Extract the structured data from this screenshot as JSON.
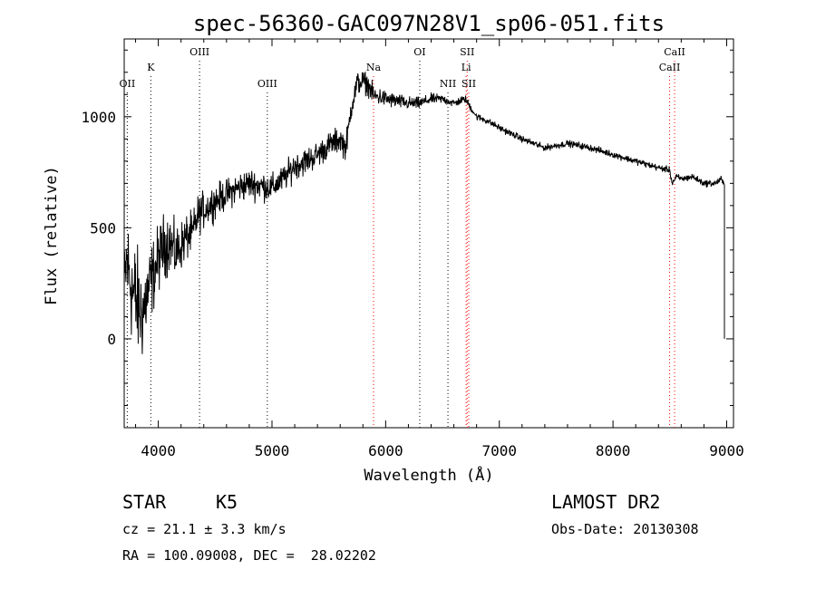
{
  "chart_data": {
    "type": "line",
    "title": "spec-56360-GAC097N28V1_sp06-051.fits",
    "xlabel": "Wavelength (Å)",
    "ylabel": "Flux (relative)",
    "xlim": [
      3700,
      9060
    ],
    "ylim": [
      -400,
      1350
    ],
    "xticks": [
      4000,
      5000,
      6000,
      7000,
      8000,
      9000
    ],
    "yticks": [
      0,
      500,
      1000
    ],
    "grid": false,
    "series": [
      {
        "color": "#000000",
        "envelope": {
          "x": [
            3700,
            3720,
            3740,
            3760,
            3780,
            3800,
            3820,
            3840,
            3860,
            3880,
            3900,
            3950,
            4000,
            4050,
            4100,
            4150,
            4200,
            4250,
            4300,
            4350,
            4400,
            4500,
            4600,
            4700,
            4800,
            4900,
            5000,
            5100,
            5200,
            5300,
            5400,
            5500,
            5600,
            5650,
            5700,
            5750,
            5800,
            5850,
            5900,
            5950,
            6000,
            6100,
            6200,
            6300,
            6400,
            6500,
            6600,
            6700,
            6800,
            6900,
            7000,
            7200,
            7400,
            7600,
            7800,
            8000,
            8200,
            8400,
            8500,
            8520,
            8560,
            8600,
            8700,
            8800,
            8900,
            8950,
            8980
          ],
          "center": [
            200,
            350,
            300,
            250,
            200,
            180,
            150,
            130,
            120,
            150,
            200,
            280,
            360,
            420,
            440,
            380,
            420,
            460,
            470,
            560,
            580,
            620,
            650,
            680,
            700,
            690,
            680,
            720,
            780,
            800,
            830,
            870,
            900,
            860,
            1050,
            1150,
            1160,
            1140,
            1090,
            1090,
            1080,
            1070,
            1060,
            1060,
            1080,
            1080,
            1060,
            1080,
            1000,
            980,
            950,
            900,
            860,
            880,
            860,
            830,
            800,
            770,
            760,
            700,
            730,
            720,
            730,
            700,
            700,
            720,
            690
          ],
          "noise": [
            300,
            320,
            360,
            360,
            380,
            380,
            360,
            340,
            320,
            300,
            280,
            240,
            220,
            210,
            200,
            180,
            160,
            150,
            140,
            130,
            120,
            110,
            100,
            100,
            100,
            100,
            90,
            90,
            90,
            90,
            85,
            85,
            85,
            85,
            80,
            80,
            75,
            70,
            65,
            60,
            55,
            50,
            45,
            40,
            35,
            30,
            28,
            26,
            24,
            22,
            22,
            22,
            22,
            22,
            22,
            22,
            22,
            22,
            22,
            22,
            22,
            22,
            22,
            22,
            22,
            22,
            22
          ],
          "ends_at_zero": true
        }
      }
    ],
    "line_markers": [
      {
        "name": "OII",
        "x": 3727,
        "color": "#000000",
        "row": 3
      },
      {
        "name": "K",
        "x": 3934,
        "color": "#000000",
        "row": 2
      },
      {
        "name": "OIII",
        "x": 4363,
        "color": "#000000",
        "row": 1
      },
      {
        "name": "OIII",
        "x": 4959,
        "color": "#000000",
        "row": 3
      },
      {
        "name": "Na",
        "x": 5893,
        "color": "#ff0000",
        "row": 2
      },
      {
        "name": "OI",
        "x": 6300,
        "color": "#000000",
        "row": 1
      },
      {
        "name": "NII",
        "x": 6548,
        "color": "#000000",
        "row": 3
      },
      {
        "name": "SII",
        "x": 6717,
        "color": "#ff0000",
        "row": 1
      },
      {
        "name": "Li",
        "x": 6708,
        "color": "#ff0000",
        "row": 2
      },
      {
        "name": "SII",
        "x": 6731,
        "color": "#ff0000",
        "row": 3
      },
      {
        "name": "CaII",
        "x": 8542,
        "color": "#ff0000",
        "row": 1
      },
      {
        "name": "CaII",
        "x": 8498,
        "color": "#ff0000",
        "row": 2
      }
    ]
  },
  "info": {
    "class_label": "STAR",
    "subclass_label": "K5",
    "survey": "LAMOST DR2",
    "redshift_text": "cz = 21.1 ± 3.3 km/s",
    "obs_date": "Obs-Date: 20130308",
    "coords": "RA = 100.09008, DEC =  28.02202"
  }
}
